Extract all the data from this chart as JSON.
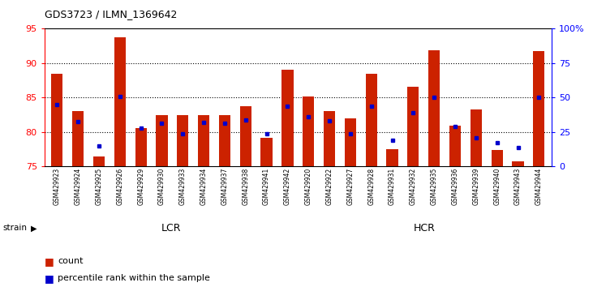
{
  "title": "GDS3723 / ILMN_1369642",
  "samples": [
    "GSM429923",
    "GSM429924",
    "GSM429925",
    "GSM429926",
    "GSM429929",
    "GSM429930",
    "GSM429933",
    "GSM429934",
    "GSM429937",
    "GSM429938",
    "GSM429941",
    "GSM429942",
    "GSM429920",
    "GSM429922",
    "GSM429927",
    "GSM429928",
    "GSM429931",
    "GSM429932",
    "GSM429935",
    "GSM429936",
    "GSM429939",
    "GSM429940",
    "GSM429943",
    "GSM429944"
  ],
  "count_values": [
    88.4,
    83.0,
    76.5,
    93.8,
    80.6,
    82.5,
    82.5,
    82.5,
    82.5,
    83.8,
    79.2,
    89.0,
    85.2,
    83.1,
    82.0,
    88.5,
    77.5,
    86.6,
    91.9,
    80.9,
    83.3,
    77.4,
    75.8,
    91.8
  ],
  "percentile_values": [
    84.0,
    81.5,
    78.0,
    85.2,
    80.6,
    81.3,
    79.7,
    81.4,
    81.3,
    81.8,
    79.7,
    83.8,
    82.2,
    81.6,
    79.7,
    83.8,
    78.8,
    82.8,
    85.0,
    80.8,
    79.2,
    78.5,
    77.7,
    85.0
  ],
  "lcr_count": 12,
  "hcr_count": 12,
  "ylim_left": [
    75,
    95
  ],
  "left_ticks": [
    75,
    80,
    85,
    90,
    95
  ],
  "right_ticks": [
    0,
    25,
    50,
    75,
    100
  ],
  "right_tick_labels": [
    "0",
    "25",
    "50",
    "75",
    "100%"
  ],
  "bar_color": "#CC2200",
  "marker_color": "#0000CC",
  "lcr_color": "#AAFFAA",
  "hcr_color": "#44DD44",
  "background_color": "#ffffff"
}
